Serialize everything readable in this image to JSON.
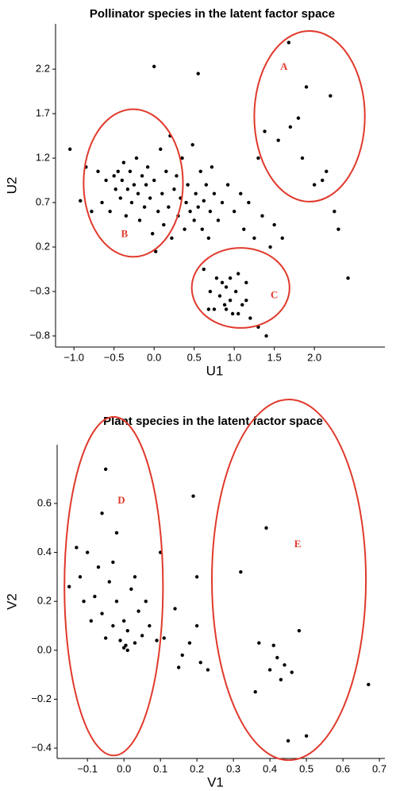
{
  "chart_data": [
    {
      "type": "scatter",
      "title": "Pollinator species in the latent factor space",
      "x_label": "U1",
      "y_label": "U2",
      "color": "#000000",
      "x": [
        -1.05,
        -0.92,
        -0.85,
        -0.78,
        -0.7,
        -0.65,
        -0.6,
        -0.55,
        -0.5,
        -0.48,
        -0.45,
        -0.42,
        -0.4,
        -0.38,
        -0.35,
        -0.33,
        -0.3,
        -0.28,
        -0.25,
        -0.22,
        -0.2,
        -0.18,
        -0.15,
        -0.12,
        -0.1,
        -0.08,
        -0.05,
        -0.02,
        0.0,
        0.02,
        0.05,
        0.08,
        0.1,
        0.12,
        0.15,
        0.18,
        0.2,
        0.22,
        0.25,
        0.28,
        0.3,
        0.33,
        0.35,
        0.38,
        0.4,
        0.42,
        0.45,
        0.48,
        0.5,
        0.52,
        0.55,
        0.58,
        0.6,
        0.62,
        0.65,
        0.68,
        0.7,
        0.72,
        0.75,
        0.78,
        0.8,
        0.82,
        0.85,
        0.88,
        0.9,
        0.92,
        0.95,
        0.98,
        1.0,
        1.02,
        1.05,
        1.08,
        1.1,
        1.12,
        1.15,
        1.18,
        1.2,
        1.25,
        1.3,
        1.35,
        1.4,
        1.45,
        1.5,
        1.55,
        1.6,
        1.7,
        1.8,
        1.9,
        2.0,
        2.1,
        2.2,
        2.3,
        2.42,
        1.68,
        0.0,
        0.55,
        0.62,
        0.7,
        0.75,
        0.85,
        0.9,
        0.95,
        1.05,
        1.15,
        0.68,
        1.85,
        2.15,
        1.38,
        1.3,
        2.25
      ],
      "y": [
        1.3,
        0.72,
        1.1,
        0.6,
        1.05,
        0.7,
        0.95,
        0.6,
        1.0,
        0.85,
        1.05,
        0.75,
        0.95,
        1.15,
        0.55,
        0.85,
        1.05,
        0.7,
        0.9,
        1.2,
        0.8,
        0.5,
        1.0,
        0.65,
        0.9,
        1.1,
        0.75,
        0.35,
        0.95,
        0.15,
        0.6,
        1.3,
        0.8,
        0.45,
        1.05,
        0.65,
        1.45,
        0.3,
        0.85,
        1.0,
        0.55,
        0.75,
        1.2,
        0.4,
        0.7,
        0.9,
        0.6,
        1.35,
        0.5,
        0.8,
        0.65,
        1.05,
        0.4,
        0.72,
        0.9,
        0.3,
        0.6,
        1.1,
        0.8,
        -0.15,
        0.5,
        -0.35,
        0.7,
        -0.45,
        -0.25,
        0.9,
        -0.4,
        -0.55,
        0.6,
        -0.3,
        -0.1,
        0.8,
        -0.45,
        0.4,
        -0.2,
        0.7,
        -0.6,
        0.3,
        -0.7,
        0.55,
        -0.8,
        0.2,
        0.45,
        1.4,
        0.3,
        1.55,
        1.65,
        2.0,
        0.9,
        0.95,
        1.9,
        0.4,
        -0.15,
        2.5,
        2.23,
        2.15,
        -0.05,
        -0.3,
        -0.5,
        -0.2,
        -0.5,
        -0.15,
        -0.55,
        -0.4,
        -0.5,
        1.2,
        1.05,
        1.5,
        1.2,
        0.6
      ],
      "xlim": [
        -1.23,
        2.88
      ],
      "ylim": [
        -0.925,
        2.71
      ],
      "xticks": [
        {
          "value": -1.0,
          "label": "−1.0"
        },
        {
          "value": -0.5,
          "label": "−0.5"
        },
        {
          "value": 0,
          "label": "0.0"
        },
        0.5,
        {
          "value": 1,
          "label": "1.0"
        },
        1.5,
        {
          "value": 2,
          "label": "2.0"
        }
      ],
      "yticks": [
        {
          "value": -0.8,
          "label": "−0.8"
        },
        {
          "value": -0.3,
          "label": "−0.3"
        },
        0.2,
        0.7,
        1.2,
        1.7,
        2.2
      ],
      "ellipse_color": "#e0392b",
      "ellipses": [
        {
          "label": "A",
          "cx": 1.94,
          "cy": 1.67,
          "rx": 0.69,
          "ry": 0.96,
          "label_x": 1.62,
          "label_y": 2.22
        },
        {
          "label": "B",
          "cx": -0.26,
          "cy": 0.92,
          "rx": 0.62,
          "ry": 0.83,
          "label_x": -0.37,
          "label_y": 0.34
        },
        {
          "label": "C",
          "cx": 1.08,
          "cy": -0.26,
          "rx": 0.61,
          "ry": 0.45,
          "label_x": 1.5,
          "label_y": -0.35
        }
      ]
    },
    {
      "type": "scatter",
      "title": "Plant species in the latent factor space",
      "x_label": "V1",
      "y_label": "V2",
      "color": "#000000",
      "x": [
        -0.05,
        -0.13,
        -0.15,
        -0.12,
        -0.1,
        -0.08,
        -0.07,
        -0.06,
        -0.05,
        -0.04,
        -0.03,
        -0.02,
        -0.01,
        0.0,
        0.005,
        0.01,
        0.02,
        0.03,
        0.04,
        0.05,
        -0.02,
        -0.06,
        0.0,
        0.01,
        0.06,
        0.07,
        0.09,
        0.11,
        0.1,
        0.14,
        0.15,
        0.16,
        0.18,
        0.19,
        0.2,
        0.2,
        0.21,
        0.23,
        0.32,
        0.36,
        0.37,
        0.39,
        0.4,
        0.41,
        0.42,
        0.43,
        0.44,
        0.45,
        0.46,
        0.48,
        0.5,
        0.67,
        -0.09,
        -0.11,
        0.03,
        -0.03
      ],
      "y": [
        0.74,
        0.42,
        0.26,
        0.3,
        0.4,
        0.22,
        0.34,
        0.15,
        0.05,
        0.28,
        0.1,
        0.2,
        0.04,
        0.12,
        0.02,
        0.08,
        0.25,
        0.03,
        0.16,
        0.06,
        0.48,
        0.56,
        0.01,
        0.0,
        0.2,
        0.1,
        0.04,
        0.05,
        0.4,
        0.17,
        -0.07,
        -0.02,
        0.03,
        0.63,
        0.3,
        0.1,
        -0.05,
        -0.08,
        0.32,
        -0.17,
        0.03,
        0.5,
        -0.08,
        0.02,
        -0.03,
        -0.12,
        -0.06,
        -0.37,
        -0.09,
        0.08,
        -0.35,
        -0.14,
        0.12,
        0.2,
        0.3,
        0.36
      ],
      "xlim": [
        -0.183,
        0.715
      ],
      "ylim": [
        -0.442,
        0.84
      ],
      "xticks": [
        {
          "value": -0.1,
          "label": "−0.1"
        },
        {
          "value": 0,
          "label": "0.0"
        },
        0.1,
        0.2,
        0.3,
        0.4,
        0.5,
        0.6,
        0.7
      ],
      "yticks": [
        {
          "value": -0.4,
          "label": "−0.4"
        },
        {
          "value": -0.2,
          "label": "−0.2"
        },
        {
          "value": 0,
          "label": "0.0"
        },
        0.2,
        0.4,
        0.6
      ],
      "ellipse_color": "#e0392b",
      "ellipses": [
        {
          "label": "D",
          "cx": -0.028,
          "cy": 0.262,
          "rx": 0.135,
          "ry": 0.692,
          "label_x": -0.007,
          "label_y": 0.61
        },
        {
          "label": "E",
          "cx": 0.452,
          "cy": 0.288,
          "rx": 0.211,
          "ry": 0.737,
          "label_x": 0.476,
          "label_y": 0.431
        }
      ]
    }
  ]
}
